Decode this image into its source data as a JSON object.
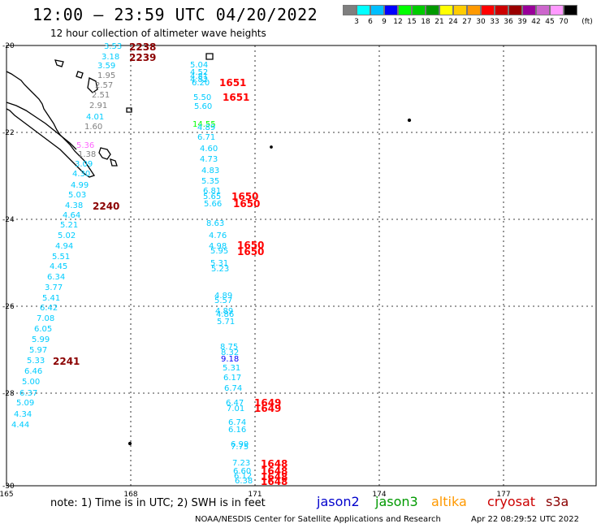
{
  "title": "12:00 – 23:59 UTC 04/20/2022",
  "subtitle": "12 hour collection of altimeter wave heights",
  "colorbar": {
    "unit": "(ft)",
    "colors": [
      "#7f7f7f",
      "#00ffff",
      "#00bfff",
      "#0000ff",
      "#00ff00",
      "#00cc00",
      "#009900",
      "#ffff00",
      "#ffcc00",
      "#ff9900",
      "#ff0000",
      "#cc0000",
      "#990000",
      "#990099",
      "#cc66cc",
      "#ff99ff",
      "#000000"
    ],
    "labels": [
      "3",
      "6",
      "9",
      "12",
      "15",
      "18",
      "21",
      "24",
      "27",
      "30",
      "33",
      "36",
      "39",
      "42",
      "45",
      "70"
    ]
  },
  "axes": {
    "x_ticks": [
      "165",
      "168",
      "171",
      "174",
      "177"
    ],
    "y_ticks": [
      "-20",
      "-22",
      "-24",
      "-26",
      "-28",
      "-30"
    ]
  },
  "track_times": [
    {
      "text": "2238",
      "color": "#8b0000"
    },
    {
      "text": "2239",
      "color": "#8b0000"
    },
    {
      "text": "2240",
      "color": "#8b0000"
    },
    {
      "text": "2241",
      "color": "#8b0000"
    },
    {
      "text": "1651",
      "color": "#ff0000"
    },
    {
      "text": "1651",
      "color": "#ff0000"
    },
    {
      "text": "1650",
      "color": "#ff0000"
    },
    {
      "text": "1650",
      "color": "#ff0000"
    },
    {
      "text": "1650",
      "color": "#ff0000"
    },
    {
      "text": "1650",
      "color": "#ff0000"
    },
    {
      "text": "1649",
      "color": "#ff0000"
    },
    {
      "text": "1649",
      "color": "#ff0000"
    },
    {
      "text": "1648",
      "color": "#ff0000"
    },
    {
      "text": "1648",
      "color": "#ff0000"
    },
    {
      "text": "1648",
      "color": "#ff0000"
    },
    {
      "text": "1648",
      "color": "#ff0000"
    }
  ],
  "wave_heights": [
    {
      "text": "3.53",
      "color": "#00ccff"
    },
    {
      "text": "3.18",
      "color": "#00ccff"
    },
    {
      "text": "3.59",
      "color": "#00ccff"
    },
    {
      "text": "1.95",
      "color": "#808080"
    },
    {
      "text": "2.57",
      "color": "#808080"
    },
    {
      "text": "2.51",
      "color": "#808080"
    },
    {
      "text": "2.91",
      "color": "#808080"
    },
    {
      "text": "4.01",
      "color": "#00ccff"
    },
    {
      "text": "1.60",
      "color": "#808080"
    },
    {
      "text": "5.36",
      "color": "#ff66ff"
    },
    {
      "text": "1.38",
      "color": "#808080"
    },
    {
      "text": "3.09",
      "color": "#00ccff"
    },
    {
      "text": "4.30",
      "color": "#00ccff"
    },
    {
      "text": "4.99",
      "color": "#00ccff"
    },
    {
      "text": "5.03",
      "color": "#00ccff"
    },
    {
      "text": "4.38",
      "color": "#00ccff"
    },
    {
      "text": "4.64",
      "color": "#00ccff"
    },
    {
      "text": "5.21",
      "color": "#00ccff"
    },
    {
      "text": "5.02",
      "color": "#00ccff"
    },
    {
      "text": "4.94",
      "color": "#00ccff"
    },
    {
      "text": "5.51",
      "color": "#00ccff"
    },
    {
      "text": "4.45",
      "color": "#00ccff"
    },
    {
      "text": "6.34",
      "color": "#00ccff"
    },
    {
      "text": "3.77",
      "color": "#00ccff"
    },
    {
      "text": "5.41",
      "color": "#00ccff"
    },
    {
      "text": "6.42",
      "color": "#00ccff"
    },
    {
      "text": "7.08",
      "color": "#00ccff"
    },
    {
      "text": "6.05",
      "color": "#00ccff"
    },
    {
      "text": "5.99",
      "color": "#00ccff"
    },
    {
      "text": "5.97",
      "color": "#00ccff"
    },
    {
      "text": "5.33",
      "color": "#00ccff"
    },
    {
      "text": "6.46",
      "color": "#00ccff"
    },
    {
      "text": "5.00",
      "color": "#00ccff"
    },
    {
      "text": "6.37",
      "color": "#00ccff"
    },
    {
      "text": "5.09",
      "color": "#00ccff"
    },
    {
      "text": "4.34",
      "color": "#00ccff"
    },
    {
      "text": "4.44",
      "color": "#00ccff"
    },
    {
      "text": "5.04",
      "color": "#00ccff"
    },
    {
      "text": "4.52",
      "color": "#00ccff"
    },
    {
      "text": "4.81",
      "color": "#00ccff"
    },
    {
      "text": "4.82",
      "color": "#00ccff"
    },
    {
      "text": "6.20",
      "color": "#00ccff"
    },
    {
      "text": "5.50",
      "color": "#00ccff"
    },
    {
      "text": "5.60",
      "color": "#00ccff"
    },
    {
      "text": "14.55",
      "color": "#00ff00"
    },
    {
      "text": "4.89",
      "color": "#00ccff"
    },
    {
      "text": "6.71",
      "color": "#00ccff"
    },
    {
      "text": "4.60",
      "color": "#00ccff"
    },
    {
      "text": "4.73",
      "color": "#00ccff"
    },
    {
      "text": "4.83",
      "color": "#00ccff"
    },
    {
      "text": "5.35",
      "color": "#00ccff"
    },
    {
      "text": "6.81",
      "color": "#00ccff"
    },
    {
      "text": "5.65",
      "color": "#00ccff"
    },
    {
      "text": "5.66",
      "color": "#00ccff"
    },
    {
      "text": "8.63",
      "color": "#00ccff"
    },
    {
      "text": "4.76",
      "color": "#00ccff"
    },
    {
      "text": "4.98",
      "color": "#00ccff"
    },
    {
      "text": "5.95",
      "color": "#00ccff"
    },
    {
      "text": "5.31",
      "color": "#00ccff"
    },
    {
      "text": "5.23",
      "color": "#00ccff"
    },
    {
      "text": "4.89",
      "color": "#00ccff"
    },
    {
      "text": "5.57",
      "color": "#00ccff"
    },
    {
      "text": "4.89",
      "color": "#00ccff"
    },
    {
      "text": "4.86",
      "color": "#00ccff"
    },
    {
      "text": "5.71",
      "color": "#00ccff"
    },
    {
      "text": "8.75",
      "color": "#00ccff"
    },
    {
      "text": "8.32",
      "color": "#00ccff"
    },
    {
      "text": "9.18",
      "color": "#0000ff"
    },
    {
      "text": "5.31",
      "color": "#00ccff"
    },
    {
      "text": "6.17",
      "color": "#00ccff"
    },
    {
      "text": "6.74",
      "color": "#00ccff"
    },
    {
      "text": "6.47",
      "color": "#00ccff"
    },
    {
      "text": "7.01",
      "color": "#00ccff"
    },
    {
      "text": "6.74",
      "color": "#00ccff"
    },
    {
      "text": "6.16",
      "color": "#00ccff"
    },
    {
      "text": "6.99",
      "color": "#00ccff"
    },
    {
      "text": "7.75",
      "color": "#00ccff"
    },
    {
      "text": "7.23",
      "color": "#00ccff"
    },
    {
      "text": "6.60",
      "color": "#00ccff"
    },
    {
      "text": "6.12",
      "color": "#00ccff"
    },
    {
      "text": "6.38",
      "color": "#00ccff"
    }
  ],
  "note": "note: 1) Time is in UTC; 2) SWH is in feet",
  "satellites": [
    {
      "name": "jason2",
      "color": "#0000cc"
    },
    {
      "name": "jason3",
      "color": "#009900"
    },
    {
      "name": "altika",
      "color": "#ff9900"
    },
    {
      "name": "cryosat",
      "color": "#cc0000"
    },
    {
      "name": "s3a",
      "color": "#8b0000"
    }
  ],
  "credit": "NOAA/NESDIS Center for Satellite Applications and Research",
  "timestamp": "Apr 22 08:29:52 UTC 2022"
}
